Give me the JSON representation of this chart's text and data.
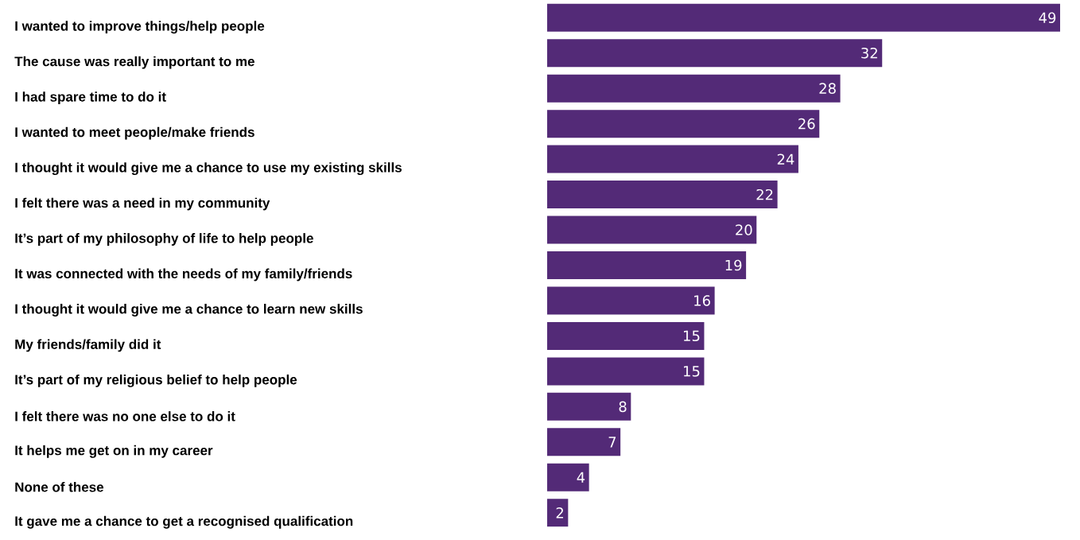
{
  "chart_data": {
    "type": "bar",
    "orientation": "horizontal",
    "categories": [
      "I wanted to improve things/help people",
      "The cause was really important to me",
      "I had spare time to do it",
      "I wanted to meet people/make friends",
      "I thought it would give me a chance to use my existing skills",
      "I felt there was a need in my community",
      "It’s part of my philosophy of life to help people",
      "It was connected with the needs of my family/friends",
      "I thought it would give me a chance to learn new skills",
      "My friends/family did it",
      "It’s part of my religious belief to help people",
      "I felt there was no one else to do it",
      "It helps me get on in my career",
      "None of these",
      "It gave me a chance to get a recognised qualification"
    ],
    "values": [
      49,
      32,
      28,
      26,
      24,
      22,
      20,
      19,
      16,
      15,
      15,
      8,
      7,
      4,
      2
    ],
    "color": "#532a77",
    "data_labels": true
  }
}
